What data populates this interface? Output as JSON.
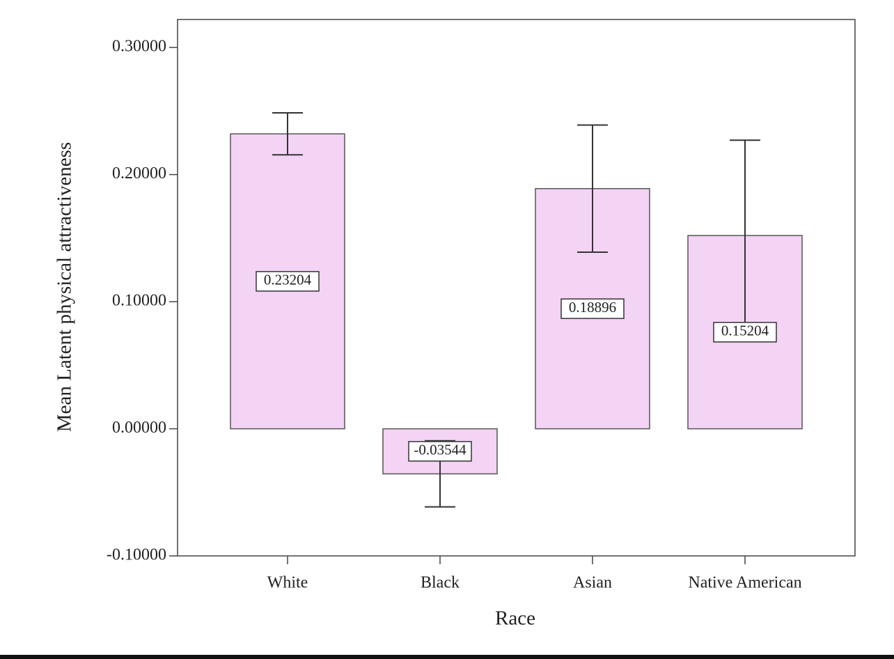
{
  "chart_data": {
    "type": "bar",
    "categories": [
      "White",
      "Black",
      "Asian",
      "Native American"
    ],
    "values": [
      0.23204,
      -0.03544,
      0.18896,
      0.15204
    ],
    "errors": [
      0.0165,
      0.026,
      0.05,
      0.075
    ],
    "color": "#f3d4f5",
    "x_label": "Race",
    "y_label": "Mean Latent physical attractiveness",
    "ylim": [
      -0.1,
      0.322
    ],
    "yticks": [
      {
        "value": -0.1,
        "label": "-0.10000"
      },
      {
        "value": 0,
        "label": "0.00000"
      },
      {
        "value": 0.1,
        "label": "0.10000"
      },
      {
        "value": 0.2,
        "label": "0.20000"
      },
      {
        "value": 0.3,
        "label": "0.30000"
      }
    ]
  }
}
